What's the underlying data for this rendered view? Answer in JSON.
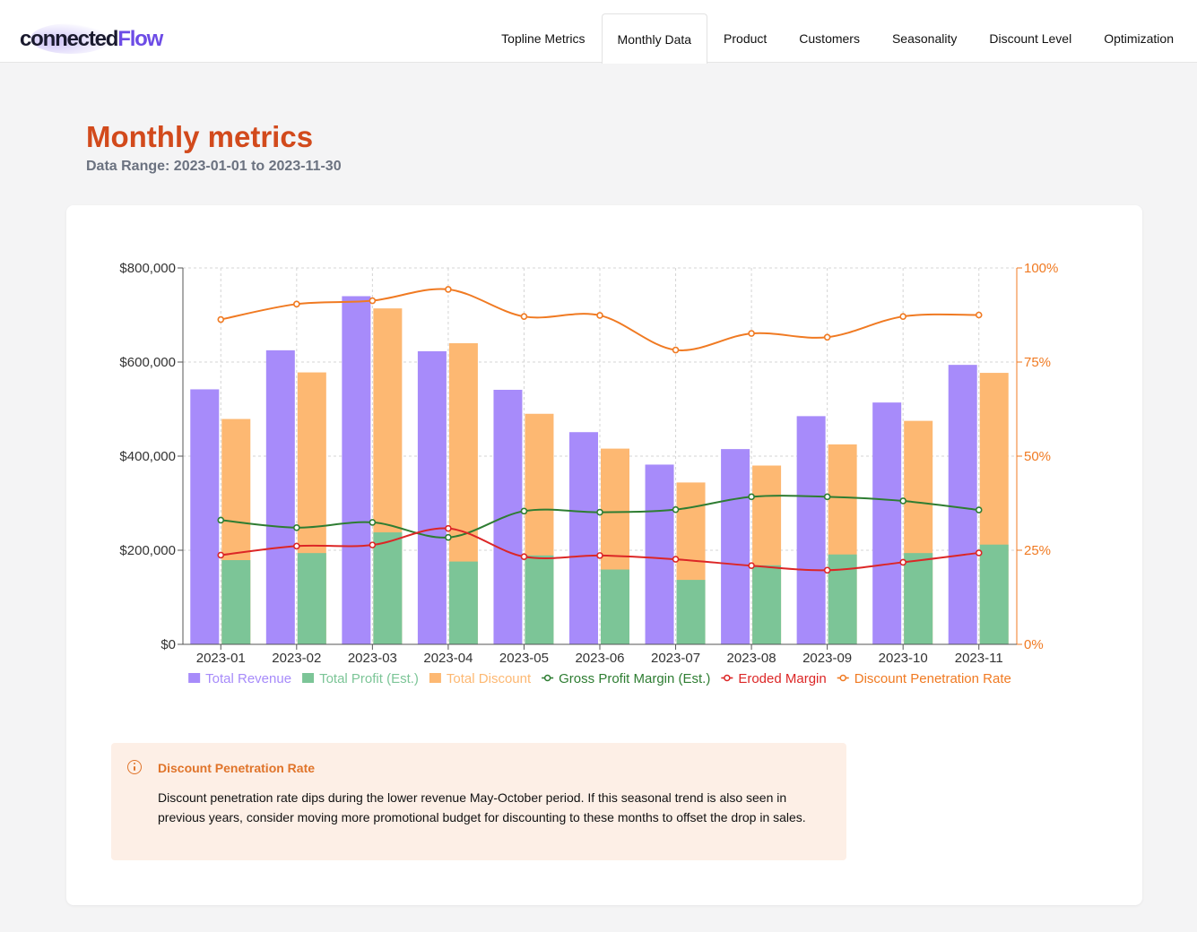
{
  "brand": {
    "part1": "connected",
    "part2": "Flow"
  },
  "nav": {
    "tabs": [
      {
        "label": "Topline Metrics",
        "active": false
      },
      {
        "label": "Monthly Data",
        "active": true
      },
      {
        "label": "Product",
        "active": false
      },
      {
        "label": "Customers",
        "active": false
      },
      {
        "label": "Seasonality",
        "active": false
      },
      {
        "label": "Discount Level",
        "active": false
      },
      {
        "label": "Optimization",
        "active": false
      }
    ]
  },
  "page": {
    "title": "Monthly metrics",
    "subtitle": "Data Range: 2023-01-01 to 2023-11-30"
  },
  "colors": {
    "title": "#d24a1c",
    "revenue": "#a78bfa",
    "profit": "#7cc597",
    "discount": "#fdb872",
    "gross_margin": "#2e7d32",
    "eroded_margin": "#dc2626",
    "penetration": "#f07a22"
  },
  "chart_data": {
    "type": "bar",
    "categories": [
      "2023-01",
      "2023-02",
      "2023-03",
      "2023-04",
      "2023-05",
      "2023-06",
      "2023-07",
      "2023-08",
      "2023-09",
      "2023-10",
      "2023-11"
    ],
    "series": [
      {
        "name": "Total Revenue",
        "kind": "bar",
        "axis": "left",
        "values": [
          542000,
          625000,
          740000,
          623000,
          541000,
          451000,
          382000,
          415000,
          485000,
          514000,
          594000
        ]
      },
      {
        "name": "Total Discount",
        "kind": "bar",
        "axis": "left",
        "values": [
          479000,
          578000,
          714000,
          640000,
          490000,
          416000,
          344000,
          380000,
          425000,
          475000,
          577000
        ]
      },
      {
        "name": "Total Profit (Est.)",
        "kind": "bar",
        "axis": "left",
        "values": [
          179000,
          194000,
          238000,
          176000,
          189000,
          159000,
          137000,
          168000,
          191000,
          194000,
          212000
        ]
      },
      {
        "name": "Gross Profit Margin (Est.)",
        "kind": "line",
        "axis": "right",
        "values": [
          33,
          31,
          32.4,
          28.4,
          35.4,
          35.1,
          35.8,
          39.2,
          39.2,
          38.1,
          35.7
        ]
      },
      {
        "name": "Eroded Margin",
        "kind": "line",
        "axis": "right",
        "values": [
          23.7,
          26.1,
          26.4,
          30.8,
          23.3,
          23.6,
          22.6,
          20.9,
          19.7,
          21.8,
          24.3
        ]
      },
      {
        "name": "Discount Penetration Rate",
        "kind": "line",
        "axis": "right",
        "values": [
          86.3,
          90.4,
          91.3,
          94.3,
          87.1,
          87.4,
          78.2,
          82.6,
          81.6,
          87.1,
          87.5
        ]
      }
    ],
    "legend": [
      "Total Revenue",
      "Total Profit (Est.)",
      "Total Discount",
      "Gross Profit Margin (Est.)",
      "Eroded Margin",
      "Discount Penetration Rate"
    ],
    "y_left": {
      "range": [
        0,
        800000
      ],
      "ticks": [
        0,
        200000,
        400000,
        600000,
        800000
      ],
      "tick_labels": [
        "$0",
        "$200,000",
        "$400,000",
        "$600,000",
        "$800,000"
      ]
    },
    "y_right": {
      "range": [
        0,
        100
      ],
      "ticks": [
        0,
        25,
        50,
        75,
        100
      ],
      "tick_labels": [
        "0%",
        "25%",
        "50%",
        "75%",
        "100%"
      ]
    },
    "grid": true,
    "legend_position": "bottom"
  },
  "insight": {
    "title": "Discount Penetration Rate",
    "body": "Discount penetration rate dips during the lower revenue May-October period. If this seasonal trend is also seen in previous years, consider moving more promotional budget for discounting to these months to offset the drop in sales."
  }
}
